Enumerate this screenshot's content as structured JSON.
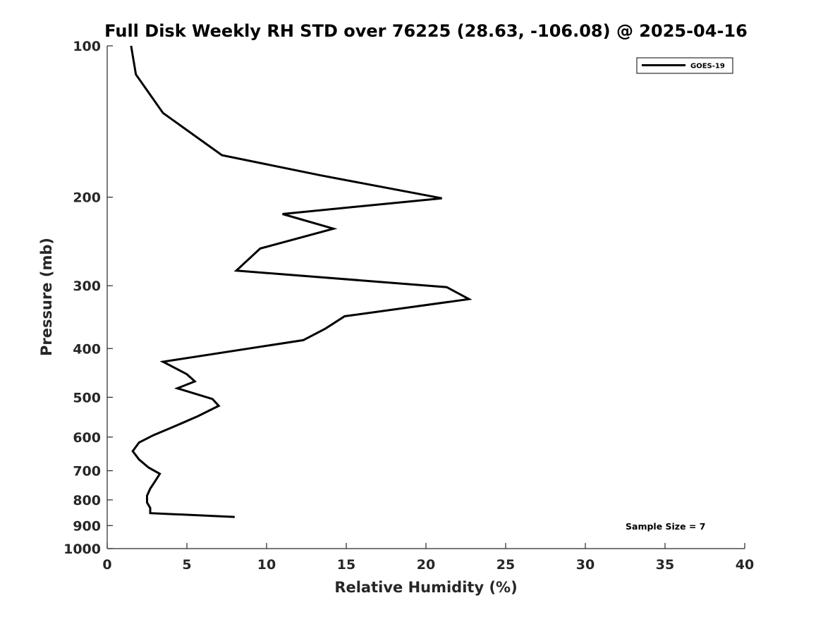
{
  "chart_data": {
    "type": "line",
    "title": "Full Disk Weekly RH STD over 76225 (28.63, -106.08) @ 2025-04-16",
    "xlabel": "Relative Humidity (%)",
    "ylabel": "Pressure (mb)",
    "xlim": [
      0,
      40
    ],
    "ylim": [
      100,
      1000
    ],
    "y_scale": "log",
    "y_reversed": true,
    "x_ticks": [
      0,
      5,
      10,
      15,
      20,
      25,
      30,
      35,
      40
    ],
    "y_ticks": [
      100,
      200,
      300,
      400,
      500,
      600,
      700,
      800,
      900,
      1000
    ],
    "grid": false,
    "legend_position": "top-right",
    "series": [
      {
        "name": "GOES-19",
        "color": "#000000",
        "x": [
          1.5,
          1.8,
          3.5,
          7.2,
          13.4,
          21.0,
          11.0,
          14.2,
          9.6,
          8.1,
          21.3,
          22.7,
          14.9,
          13.7,
          12.3,
          3.5,
          5.0,
          5.5,
          4.4,
          6.6,
          7.0,
          5.7,
          4.3,
          2.9,
          2.0,
          1.6,
          2.0,
          2.6,
          3.3,
          3.0,
          2.7,
          2.5,
          2.5,
          2.7,
          2.7,
          8.0
        ],
        "y": [
          100,
          114,
          136,
          165,
          181,
          201,
          216,
          231,
          253,
          280,
          302,
          319,
          345,
          365,
          385,
          425,
          450,
          465,
          480,
          504,
          520,
          545,
          570,
          595,
          615,
          640,
          665,
          690,
          710,
          735,
          760,
          785,
          810,
          830,
          850,
          865
        ]
      }
    ],
    "annotation": "Sample Size = 7"
  }
}
